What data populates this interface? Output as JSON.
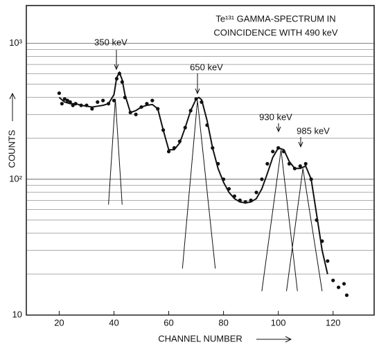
{
  "chart_data": {
    "type": "scatter",
    "title": [
      "Te¹³¹ GAMMA-SPECTRUM IN",
      "COINCIDENCE WITH 490 keV"
    ],
    "x_label": "CHANNEL NUMBER",
    "y_label": "COUNTS",
    "xlim": [
      8,
      135
    ],
    "xticks": [
      20,
      40,
      60,
      80,
      100,
      120
    ],
    "ylim": [
      10,
      1900
    ],
    "log_y": true,
    "yticks": [
      10,
      {
        "value": 100,
        "label": "10²"
      },
      {
        "value": 1000,
        "label": "10³"
      }
    ],
    "y_minor_ticks": [
      20,
      30,
      40,
      50,
      60,
      70,
      80,
      90,
      200,
      300,
      400,
      500,
      600,
      700,
      800,
      900
    ],
    "grid": true,
    "color": "#111111",
    "annotations": [
      "350 keV",
      "650 keV",
      "930 keV",
      "985 keV"
    ],
    "points": {
      "x": [
        20,
        21,
        22,
        23,
        24,
        25,
        26,
        28,
        30,
        32,
        34,
        36,
        38,
        40,
        41,
        42,
        43,
        44,
        46,
        48,
        50,
        52,
        54,
        56,
        58,
        60,
        62,
        64,
        66,
        68,
        70,
        72,
        74,
        76,
        78,
        80,
        82,
        84,
        86,
        88,
        90,
        92,
        94,
        96,
        98,
        100,
        102,
        104,
        106,
        108,
        110,
        112,
        114,
        116,
        118,
        120,
        122,
        124,
        125
      ],
      "y": [
        430,
        360,
        390,
        380,
        370,
        350,
        360,
        350,
        350,
        330,
        370,
        380,
        360,
        380,
        550,
        600,
        520,
        400,
        310,
        300,
        340,
        360,
        380,
        330,
        230,
        160,
        170,
        190,
        240,
        320,
        390,
        370,
        250,
        170,
        130,
        100,
        85,
        75,
        70,
        68,
        70,
        80,
        100,
        130,
        160,
        170,
        160,
        130,
        120,
        125,
        130,
        100,
        50,
        35,
        25,
        18,
        16,
        17,
        14
      ]
    },
    "fit": {
      "x": [
        20,
        22,
        24,
        26,
        28,
        30,
        32,
        34,
        36,
        38,
        40,
        41,
        42,
        43,
        44,
        46,
        48,
        50,
        52,
        54,
        56,
        58,
        60,
        62,
        64,
        66,
        68,
        70,
        71,
        72,
        74,
        76,
        78,
        80,
        82,
        84,
        86,
        88,
        90,
        92,
        94,
        96,
        98,
        100,
        102,
        104,
        106,
        108,
        110,
        112,
        114,
        116,
        118
      ],
      "y": [
        400,
        370,
        360,
        360,
        350,
        345,
        340,
        345,
        350,
        360,
        420,
        560,
        610,
        540,
        420,
        310,
        320,
        340,
        350,
        355,
        330,
        230,
        165,
        165,
        185,
        240,
        320,
        390,
        400,
        385,
        270,
        170,
        120,
        95,
        80,
        72,
        68,
        67,
        68,
        72,
        85,
        110,
        145,
        170,
        165,
        135,
        120,
        120,
        125,
        100,
        55,
        30,
        20
      ]
    },
    "components": [
      {
        "x": [
          38,
          40.5,
          43
        ],
        "y": [
          65,
          390,
          65
        ]
      },
      {
        "x": [
          65,
          70.5,
          77
        ],
        "y": [
          22,
          380,
          22
        ]
      },
      {
        "x": [
          94,
          101,
          107
        ],
        "y": [
          15,
          165,
          15
        ]
      },
      {
        "x": [
          103,
          109,
          116
        ],
        "y": [
          15,
          120,
          15
        ]
      }
    ]
  }
}
